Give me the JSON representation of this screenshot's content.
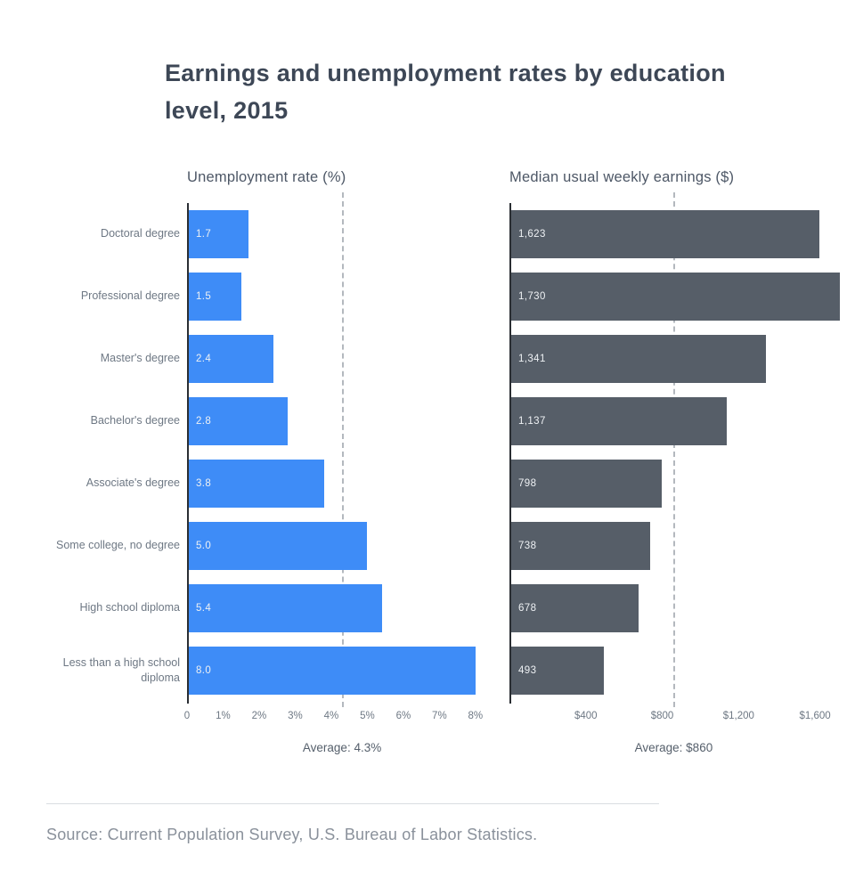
{
  "title": "Earnings and unemployment rates by education level, 2015",
  "source": "Source: Current Population Survey, U.S. Bureau of Labor Statistics.",
  "chart_data": {
    "type": "bar",
    "orientation": "horizontal",
    "title": "Earnings and unemployment rates by education level, 2015",
    "categories": [
      "Doctoral degree",
      "Professional degree",
      "Master's degree",
      "Bachelor's degree",
      "Associate's degree",
      "Some college, no degree",
      "High school diploma",
      "Less than a high school diploma"
    ],
    "series": [
      {
        "name": "Unemployment rate (%)",
        "values": [
          1.7,
          1.5,
          2.4,
          2.8,
          3.8,
          5.0,
          5.4,
          8.0
        ],
        "labels": [
          "1.7",
          "1.5",
          "2.4",
          "2.8",
          "3.8",
          "5.0",
          "5.4",
          "8.0"
        ],
        "color": "#3e8cf7",
        "xmax": 8.3,
        "ticks": [
          {
            "v": 0,
            "label": "0"
          },
          {
            "v": 1,
            "label": "1%"
          },
          {
            "v": 2,
            "label": "2%"
          },
          {
            "v": 3,
            "label": "3%"
          },
          {
            "v": 4,
            "label": "4%"
          },
          {
            "v": 5,
            "label": "5%"
          },
          {
            "v": 6,
            "label": "6%"
          },
          {
            "v": 7,
            "label": "7%"
          },
          {
            "v": 8,
            "label": "8%"
          }
        ],
        "average": {
          "value": 4.3,
          "label": "Average: 4.3%"
        }
      },
      {
        "name": "Median usual weekly earnings ($)",
        "values": [
          1623,
          1730,
          1341,
          1137,
          798,
          738,
          678,
          493
        ],
        "labels": [
          "1,623",
          "1,730",
          "1,341",
          "1,137",
          "798",
          "738",
          "678",
          "493"
        ],
        "color": "#565e68",
        "xmax": 1800,
        "ticks": [
          {
            "v": 400,
            "label": "$400"
          },
          {
            "v": 800,
            "label": "$800"
          },
          {
            "v": 1200,
            "label": "$1,200"
          },
          {
            "v": 1600,
            "label": "$1,600"
          }
        ],
        "average": {
          "value": 860,
          "label": "Average: $860"
        }
      }
    ],
    "legend": "none",
    "grid": "off"
  }
}
